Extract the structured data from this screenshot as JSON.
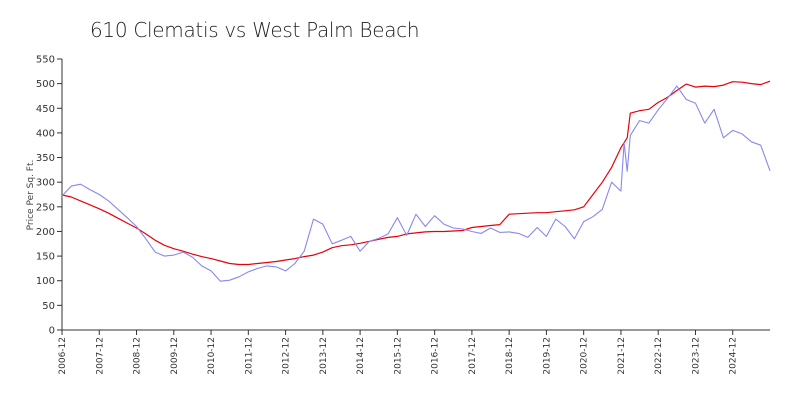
{
  "chart_data": {
    "type": "line",
    "title": "610 Clematis vs West Palm Beach",
    "xlabel": "",
    "ylabel": "Price Per Sq. Ft.",
    "ylim": [
      0,
      550
    ],
    "yticks": [
      0,
      50,
      100,
      150,
      200,
      250,
      300,
      350,
      400,
      450,
      500,
      550
    ],
    "xlim": [
      "2006-12",
      "2025-12"
    ],
    "xticks": [
      "2006-12",
      "2007-12",
      "2008-12",
      "2009-12",
      "2010-12",
      "2011-12",
      "2012-12",
      "2013-12",
      "2014-12",
      "2015-12",
      "2016-12",
      "2017-12",
      "2018-12",
      "2019-12",
      "2020-12",
      "2021-12",
      "2022-12",
      "2023-12",
      "2024-12"
    ],
    "grid": false,
    "legend": "none",
    "series": [
      {
        "color": "#e8000b",
        "points": [
          [
            "2006-12",
            274
          ],
          [
            "2007-03",
            270
          ],
          [
            "2007-06",
            262
          ],
          [
            "2007-09",
            254
          ],
          [
            "2007-12",
            246
          ],
          [
            "2008-03",
            237
          ],
          [
            "2008-06",
            227
          ],
          [
            "2008-09",
            217
          ],
          [
            "2008-12",
            207
          ],
          [
            "2009-03",
            195
          ],
          [
            "2009-06",
            182
          ],
          [
            "2009-09",
            172
          ],
          [
            "2009-12",
            165
          ],
          [
            "2010-03",
            160
          ],
          [
            "2010-06",
            154
          ],
          [
            "2010-09",
            149
          ],
          [
            "2010-12",
            145
          ],
          [
            "2011-03",
            140
          ],
          [
            "2011-06",
            135
          ],
          [
            "2011-09",
            133
          ],
          [
            "2011-12",
            133
          ],
          [
            "2012-03",
            135
          ],
          [
            "2012-06",
            137
          ],
          [
            "2012-09",
            139
          ],
          [
            "2012-12",
            142
          ],
          [
            "2013-03",
            145
          ],
          [
            "2013-06",
            149
          ],
          [
            "2013-09",
            152
          ],
          [
            "2013-12",
            158
          ],
          [
            "2014-03",
            167
          ],
          [
            "2014-06",
            171
          ],
          [
            "2014-09",
            173
          ],
          [
            "2014-12",
            176
          ],
          [
            "2015-03",
            180
          ],
          [
            "2015-06",
            184
          ],
          [
            "2015-09",
            188
          ],
          [
            "2015-12",
            190
          ],
          [
            "2016-03",
            195
          ],
          [
            "2016-06",
            197
          ],
          [
            "2016-09",
            199
          ],
          [
            "2016-12",
            200
          ],
          [
            "2017-03",
            200
          ],
          [
            "2017-06",
            201
          ],
          [
            "2017-09",
            202
          ],
          [
            "2017-12",
            208
          ],
          [
            "2018-03",
            210
          ],
          [
            "2018-06",
            212
          ],
          [
            "2018-09",
            214
          ],
          [
            "2018-12",
            235
          ],
          [
            "2019-03",
            236
          ],
          [
            "2019-06",
            237
          ],
          [
            "2019-09",
            238
          ],
          [
            "2019-12",
            238
          ],
          [
            "2020-03",
            240
          ],
          [
            "2020-06",
            242
          ],
          [
            "2020-09",
            244
          ],
          [
            "2020-12",
            250
          ],
          [
            "2021-03",
            275
          ],
          [
            "2021-06",
            300
          ],
          [
            "2021-09",
            330
          ],
          [
            "2021-12",
            370
          ],
          [
            "2022-02",
            390
          ],
          [
            "2022-03",
            440
          ],
          [
            "2022-06",
            445
          ],
          [
            "2022-09",
            448
          ],
          [
            "2022-12",
            462
          ],
          [
            "2023-03",
            472
          ],
          [
            "2023-06",
            486
          ],
          [
            "2023-09",
            499
          ],
          [
            "2023-12",
            493
          ],
          [
            "2024-03",
            495
          ],
          [
            "2024-06",
            494
          ],
          [
            "2024-09",
            497
          ],
          [
            "2024-12",
            504
          ],
          [
            "2025-03",
            503
          ],
          [
            "2025-06",
            500
          ],
          [
            "2025-09",
            498
          ],
          [
            "2025-12",
            505
          ]
        ]
      },
      {
        "color": "#8888ee",
        "points": [
          [
            "2006-12",
            272
          ],
          [
            "2007-03",
            292
          ],
          [
            "2007-06",
            296
          ],
          [
            "2007-09",
            285
          ],
          [
            "2007-12",
            275
          ],
          [
            "2008-03",
            262
          ],
          [
            "2008-06",
            245
          ],
          [
            "2008-09",
            228
          ],
          [
            "2008-12",
            210
          ],
          [
            "2009-03",
            185
          ],
          [
            "2009-06",
            158
          ],
          [
            "2009-09",
            150
          ],
          [
            "2009-12",
            152
          ],
          [
            "2010-03",
            158
          ],
          [
            "2010-06",
            148
          ],
          [
            "2010-09",
            130
          ],
          [
            "2010-12",
            120
          ],
          [
            "2011-03",
            99
          ],
          [
            "2011-06",
            101
          ],
          [
            "2011-09",
            108
          ],
          [
            "2011-12",
            118
          ],
          [
            "2012-03",
            125
          ],
          [
            "2012-06",
            130
          ],
          [
            "2012-09",
            128
          ],
          [
            "2012-12",
            120
          ],
          [
            "2013-03",
            135
          ],
          [
            "2013-06",
            160
          ],
          [
            "2013-09",
            225
          ],
          [
            "2013-12",
            215
          ],
          [
            "2014-03",
            175
          ],
          [
            "2014-06",
            182
          ],
          [
            "2014-09",
            190
          ],
          [
            "2014-12",
            160
          ],
          [
            "2015-03",
            180
          ],
          [
            "2015-06",
            186
          ],
          [
            "2015-09",
            195
          ],
          [
            "2015-12",
            228
          ],
          [
            "2016-03",
            192
          ],
          [
            "2016-06",
            235
          ],
          [
            "2016-09",
            210
          ],
          [
            "2016-12",
            232
          ],
          [
            "2017-03",
            215
          ],
          [
            "2017-06",
            207
          ],
          [
            "2017-09",
            205
          ],
          [
            "2017-12",
            200
          ],
          [
            "2018-03",
            196
          ],
          [
            "2018-06",
            207
          ],
          [
            "2018-09",
            198
          ],
          [
            "2018-12",
            199
          ],
          [
            "2019-03",
            196
          ],
          [
            "2019-06",
            188
          ],
          [
            "2019-09",
            208
          ],
          [
            "2019-12",
            190
          ],
          [
            "2020-03",
            225
          ],
          [
            "2020-06",
            210
          ],
          [
            "2020-09",
            185
          ],
          [
            "2020-12",
            220
          ],
          [
            "2021-03",
            230
          ],
          [
            "2021-06",
            245
          ],
          [
            "2021-09",
            300
          ],
          [
            "2021-12",
            282
          ],
          [
            "2022-01",
            380
          ],
          [
            "2022-02",
            322
          ],
          [
            "2022-03",
            395
          ],
          [
            "2022-06",
            425
          ],
          [
            "2022-09",
            420
          ],
          [
            "2022-12",
            447
          ],
          [
            "2023-03",
            470
          ],
          [
            "2023-06",
            495
          ],
          [
            "2023-09",
            468
          ],
          [
            "2023-12",
            460
          ],
          [
            "2024-03",
            420
          ],
          [
            "2024-06",
            448
          ],
          [
            "2024-09",
            390
          ],
          [
            "2024-12",
            405
          ],
          [
            "2025-03",
            398
          ],
          [
            "2025-06",
            382
          ],
          [
            "2025-09",
            375
          ],
          [
            "2025-12",
            323
          ]
        ]
      }
    ]
  }
}
